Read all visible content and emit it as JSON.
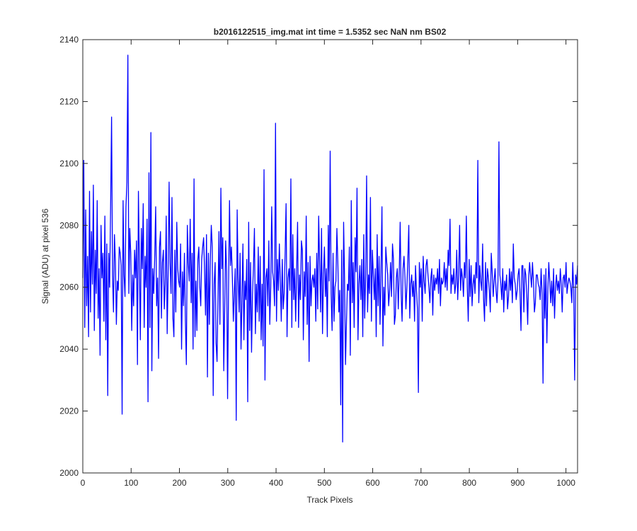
{
  "chart_data": {
    "type": "line",
    "title": "b2016122515_img.mat int time = 1.5352 sec  NaN nm BS02",
    "xlabel": "Track Pixels",
    "ylabel": "Signal (ADU) at pixel 536",
    "xlim": [
      0,
      1024
    ],
    "ylim": [
      2000,
      2140
    ],
    "xticks": [
      0,
      100,
      200,
      300,
      400,
      500,
      600,
      700,
      800,
      900,
      1000
    ],
    "yticks": [
      2000,
      2020,
      2040,
      2060,
      2080,
      2100,
      2120,
      2140
    ],
    "grid": false,
    "legend": "none",
    "line_color": "#0000ff",
    "series": [
      {
        "values": [
          2063,
          2101,
          2047,
          2085,
          2054,
          2070,
          2044,
          2091,
          2052,
          2078,
          2061,
          2093,
          2046,
          2072,
          2058,
          2088,
          2050,
          2066,
          2038,
          2080,
          2063,
          2071,
          2049,
          2083,
          2043,
          2074,
          2025,
          2071,
          2060,
          2086,
          2115,
          2064,
          2052,
          2077,
          2068,
          2048,
          2062,
          2059,
          2073,
          2071,
          2067,
          2019,
          2088,
          2064,
          2057,
          2086,
          2094,
          2135,
          2058,
          2079,
          2071,
          2046,
          2064,
          2054,
          2072,
          2063,
          2075,
          2035,
          2091,
          2068,
          2043,
          2079,
          2066,
          2087,
          2047,
          2070,
          2060,
          2082,
          2023,
          2097,
          2047,
          2110,
          2033,
          2066,
          2058,
          2070,
          2086,
          2054,
          2063,
          2037,
          2073,
          2078,
          2050,
          2068,
          2072,
          2053,
          2061,
          2083,
          2045,
          2064,
          2094,
          2068,
          2058,
          2089,
          2050,
          2044,
          2072,
          2052,
          2081,
          2066,
          2062,
          2060,
          2074,
          2040,
          2065,
          2054,
          2071,
          2049,
          2035,
          2080,
          2068,
          2062,
          2082,
          2055,
          2071,
          2040,
          2095,
          2044,
          2062,
          2046,
          2069,
          2073,
          2060,
          2054,
          2069,
          2073,
          2076,
          2065,
          2051,
          2077,
          2031,
          2071,
          2048,
          2069,
          2080,
          2073,
          2025,
          2061,
          2068,
          2042,
          2036,
          2056,
          2078,
          2048,
          2092,
          2066,
          2076,
          2033,
          2053,
          2075,
          2065,
          2024,
          2060,
          2088,
          2067,
          2073,
          2063,
          2049,
          2058,
          2066,
          2017,
          2085,
          2063,
          2052,
          2071,
          2040,
          2056,
          2074,
          2043,
          2062,
          2056,
          2069,
          2023,
          2081,
          2046,
          2068,
          2039,
          2058,
          2067,
          2079,
          2045,
          2061,
          2052,
          2073,
          2049,
          2070,
          2043,
          2061,
          2041,
          2098,
          2030,
          2063,
          2066,
          2054,
          2075,
          2048,
          2060,
          2086,
          2065,
          2062,
          2054,
          2113,
          2049,
          2069,
          2059,
          2074,
          2062,
          2049,
          2069,
          2053,
          2058,
          2071,
          2087,
          2044,
          2063,
          2066,
          2059,
          2095,
          2047,
          2077,
          2056,
          2066,
          2049,
          2065,
          2081,
          2047,
          2064,
          2056,
          2075,
          2072,
          2043,
          2065,
          2057,
          2083,
          2048,
          2068,
          2036,
          2070,
          2054,
          2062,
          2064,
          2060,
          2066,
          2049,
          2071,
          2053,
          2083,
          2068,
          2052,
          2079,
          2045,
          2064,
          2073,
          2057,
          2066,
          2044,
          2080,
          2062,
          2104,
          2058,
          2046,
          2071,
          2049,
          2060,
          2062,
          2079,
          2068,
          2052,
          2059,
          2022,
          2072,
          2010,
          2081,
          2063,
          2035,
          2049,
          2061,
          2059,
          2073,
          2038,
          2088,
          2055,
          2068,
          2047,
          2076,
          2065,
          2092,
          2043,
          2061,
          2067,
          2056,
          2069,
          2044,
          2077,
          2050,
          2064,
          2096,
          2052,
          2064,
          2058,
          2089,
          2049,
          2072,
          2064,
          2056,
          2066,
          2044,
          2077,
          2054,
          2070,
          2048,
          2065,
          2086,
          2041,
          2060,
          2051,
          2073,
          2068,
          2064,
          2054,
          2059,
          2068,
          2057,
          2074,
          2069,
          2048,
          2051,
          2063,
          2066,
          2053,
          2064,
          2081,
          2058,
          2049,
          2066,
          2070,
          2063,
          2053,
          2060,
          2069,
          2080,
          2050,
          2061,
          2064,
          2057,
          2062,
          2049,
          2067,
          2059,
          2053,
          2026,
          2068,
          2060,
          2066,
          2049,
          2070,
          2062,
          2058,
          2067,
          2069,
          2064,
          2060,
          2055,
          2063,
          2066,
          2051,
          2064,
          2059,
          2063,
          2061,
          2066,
          2058,
          2069,
          2054,
          2063,
          2061,
          2062,
          2068,
          2060,
          2066,
          2059,
          2072,
          2067,
          2082,
          2058,
          2064,
          2061,
          2066,
          2058,
          2061,
          2072,
          2056,
          2064,
          2080,
          2059,
          2066,
          2063,
          2057,
          2068,
          2063,
          2083,
          2060,
          2049,
          2069,
          2057,
          2067,
          2054,
          2061,
          2064,
          2058,
          2068,
          2063,
          2101,
          2055,
          2067,
          2062,
          2059,
          2074,
          2056,
          2049,
          2068,
          2054,
          2066,
          2063,
          2059,
          2052,
          2071,
          2065,
          2057,
          2062,
          2066,
          2059,
          2055,
          2062,
          2107,
          2064,
          2061,
          2056,
          2066,
          2052,
          2062,
          2059,
          2064,
          2053,
          2057,
          2066,
          2059,
          2065,
          2055,
          2074,
          2063,
          2061,
          2056,
          2059,
          2064,
          2066,
          2058,
          2046,
          2067,
          2067,
          2052,
          2066,
          2064,
          2058,
          2048,
          2063,
          2068,
          2064,
          2060,
          2068,
          2062,
          2052,
          2055,
          2064,
          2064,
          2061,
          2060,
          2056,
          2066,
          2058,
          2029,
          2064,
          2050,
          2066,
          2042,
          2059,
          2068,
          2062,
          2055,
          2062,
          2054,
          2066,
          2050,
          2060,
          2064,
          2059,
          2062,
          2058,
          2066,
          2061,
          2052,
          2063,
          2064,
          2060,
          2068,
          2058,
          2061,
          2063,
          2062,
          2060,
          2055,
          2068,
          2059,
          2030,
          2064,
          2061,
          2067
        ]
      }
    ]
  }
}
